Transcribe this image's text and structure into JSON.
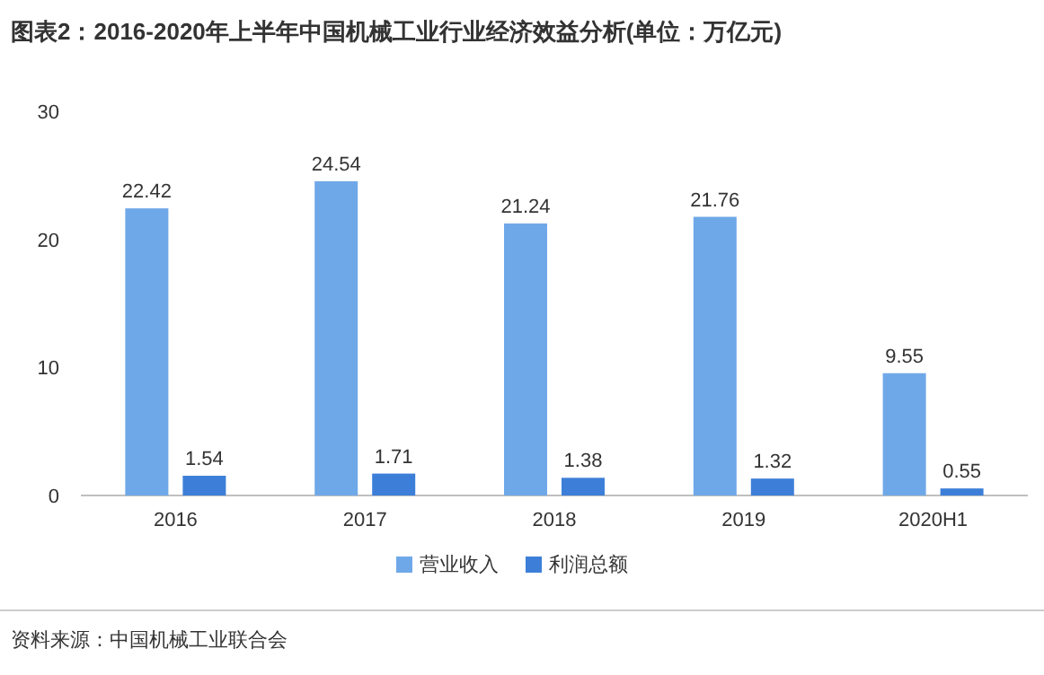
{
  "chart_data": {
    "type": "bar",
    "title": "图表2：2016-2020年上半年中国机械工业行业经济效益分析(单位：万亿元)",
    "categories": [
      "2016",
      "2017",
      "2018",
      "2019",
      "2020H1"
    ],
    "series": [
      {
        "name": "营业收入",
        "color": "#6fa8e8",
        "values": [
          22.42,
          24.54,
          21.24,
          21.76,
          9.55
        ]
      },
      {
        "name": "利润总额",
        "color": "#3d7fd8",
        "values": [
          1.54,
          1.71,
          1.38,
          1.32,
          0.55
        ]
      }
    ],
    "ylim": [
      0,
      30
    ],
    "yticks": [
      0,
      10,
      20,
      30
    ],
    "data_labels": true,
    "legend": "bottom",
    "grid": false,
    "annotations": [
      "资料来源：中国机械工业联合会"
    ]
  }
}
